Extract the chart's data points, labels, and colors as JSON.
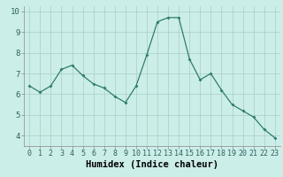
{
  "x": [
    0,
    1,
    2,
    3,
    4,
    5,
    6,
    7,
    8,
    9,
    10,
    11,
    12,
    13,
    14,
    15,
    16,
    17,
    18,
    19,
    20,
    21,
    22,
    23
  ],
  "y": [
    6.4,
    6.1,
    6.4,
    7.2,
    7.4,
    6.9,
    6.5,
    6.3,
    5.9,
    5.6,
    6.4,
    7.9,
    9.5,
    9.7,
    9.7,
    7.7,
    6.7,
    7.0,
    6.2,
    5.5,
    5.2,
    4.9,
    4.3,
    3.9
  ],
  "xlabel": "Humidex (Indice chaleur)",
  "ylim": [
    3.5,
    10.25
  ],
  "xlim": [
    -0.5,
    23.5
  ],
  "yticks": [
    4,
    5,
    6,
    7,
    8,
    9,
    10
  ],
  "xtick_labels": [
    "0",
    "1",
    "2",
    "3",
    "4",
    "5",
    "6",
    "7",
    "8",
    "9",
    "10",
    "11",
    "12",
    "13",
    "14",
    "15",
    "16",
    "17",
    "18",
    "19",
    "20",
    "21",
    "22",
    "23"
  ],
  "line_color": "#2e7d6e",
  "marker_color": "#2e7d6e",
  "bg_color": "#cceee8",
  "grid_color": "#aaccc8",
  "xlabel_fontsize": 7.5,
  "tick_fontsize": 6.0,
  "ytick_fontsize": 6.5,
  "linewidth": 0.9,
  "markersize": 2.0
}
